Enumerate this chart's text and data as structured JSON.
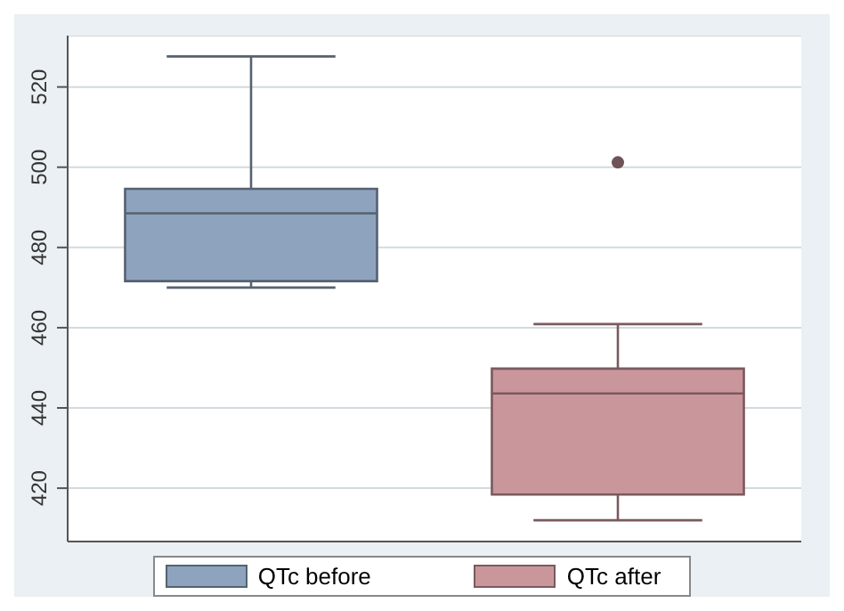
{
  "chart_data": {
    "type": "box",
    "categories": [
      null,
      null
    ],
    "series": [
      {
        "name": "QTc before",
        "color": "#8ea3bd",
        "boxes": [
          {
            "low": 470,
            "q1": 471.6,
            "median": 488.5,
            "q3": 494.6,
            "high": 527.6
          },
          null
        ]
      },
      {
        "name": "QTc after",
        "color": "#c9969c",
        "boxes": [
          null,
          {
            "low": 412,
            "q1": 418.4,
            "median": 443.6,
            "q3": 449.8,
            "high": 460.9,
            "outliers": [
              501.2
            ]
          }
        ]
      }
    ],
    "ylim": [
      406.7,
      532.8
    ],
    "yticks": [
      420,
      440,
      460,
      480,
      500,
      520
    ],
    "grid": "y",
    "legend": "bottom"
  }
}
